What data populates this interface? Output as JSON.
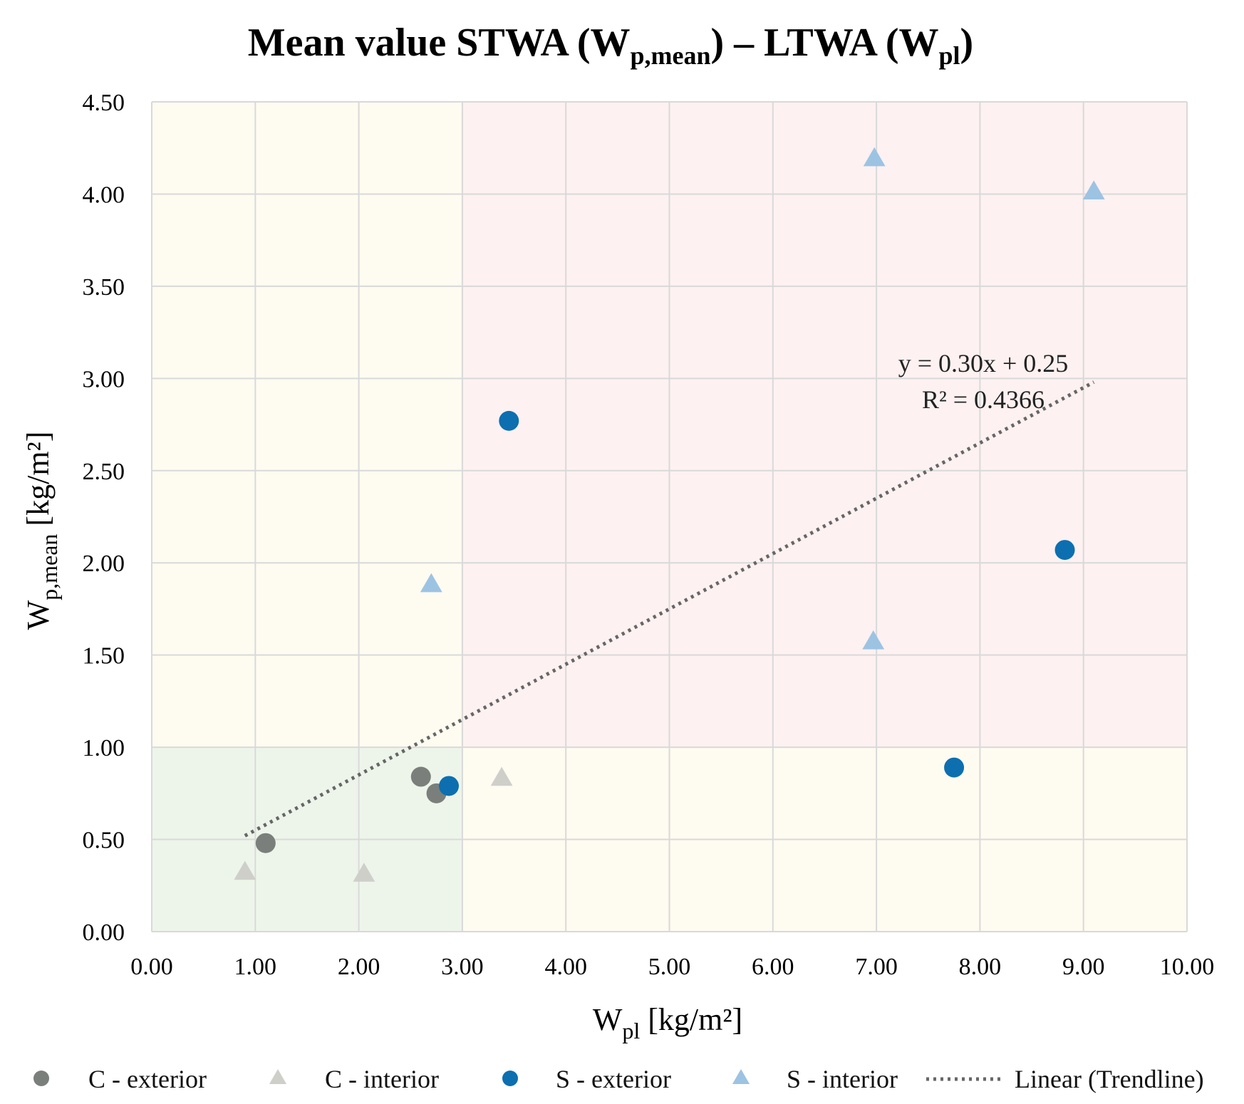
{
  "chart_data": {
    "type": "scatter",
    "title": {
      "prefix": "Mean value STWA (W",
      "sub1": "p,mean",
      "mid": ") – LTWA (W",
      "sub2": "pl",
      "suffix": ")"
    },
    "xlabel": {
      "main": "W",
      "sub": "pl",
      "unit": " [kg/m²]"
    },
    "ylabel": {
      "main": "W",
      "sub": "p,mean",
      "unit": " [kg/m²]"
    },
    "xlim": [
      0,
      10
    ],
    "ylim": [
      0,
      4.5
    ],
    "x_ticks": [
      "0.00",
      "1.00",
      "2.00",
      "3.00",
      "4.00",
      "5.00",
      "6.00",
      "7.00",
      "8.00",
      "9.00",
      "10.00"
    ],
    "y_ticks": [
      "0.00",
      "0.50",
      "1.00",
      "1.50",
      "2.00",
      "2.50",
      "3.00",
      "3.50",
      "4.00",
      "4.50"
    ],
    "grid": true,
    "zones": [
      {
        "name": "low-zone",
        "x": [
          0,
          3
        ],
        "y": [
          0,
          1
        ],
        "color": "#edf5ea"
      },
      {
        "name": "upper-left-zone",
        "x": [
          0,
          3
        ],
        "y": [
          1,
          4.5
        ],
        "color": "#fefbf0"
      },
      {
        "name": "upper-right-zone",
        "x": [
          3,
          10
        ],
        "y": [
          1,
          4.5
        ],
        "color": "#fdf1f1"
      },
      {
        "name": "lower-right-zone",
        "x": [
          3,
          10
        ],
        "y": [
          0,
          1
        ],
        "color": "#fefbf0"
      }
    ],
    "series": [
      {
        "name": "C - exterior",
        "marker": "circle",
        "color": "#7a7f7b",
        "points": [
          [
            1.1,
            0.48
          ],
          [
            2.6,
            0.84
          ],
          [
            2.75,
            0.75
          ]
        ]
      },
      {
        "name": "C - interior",
        "marker": "triangle",
        "color": "#cfcfca",
        "points": [
          [
            0.9,
            0.32
          ],
          [
            2.05,
            0.31
          ],
          [
            3.38,
            0.83
          ]
        ]
      },
      {
        "name": "S - exterior",
        "marker": "circle",
        "color": "#0d6fb0",
        "points": [
          [
            2.87,
            0.79
          ],
          [
            3.45,
            2.77
          ],
          [
            7.75,
            0.89
          ],
          [
            8.82,
            2.07
          ]
        ]
      },
      {
        "name": "S - interior",
        "marker": "triangle",
        "color": "#9dc3e3",
        "points": [
          [
            2.7,
            1.88
          ],
          [
            6.98,
            4.19
          ],
          [
            6.97,
            1.57
          ],
          [
            9.1,
            4.01
          ]
        ]
      }
    ],
    "trendline": {
      "name": "Linear (Trendline)",
      "x_range": [
        0.9,
        9.1
      ],
      "slope": 0.3,
      "intercept": 0.25,
      "color": "#666666",
      "equation": "y = 0.30x + 0.25",
      "r2": "R² = 0.4366"
    },
    "legend_position": "bottom"
  }
}
